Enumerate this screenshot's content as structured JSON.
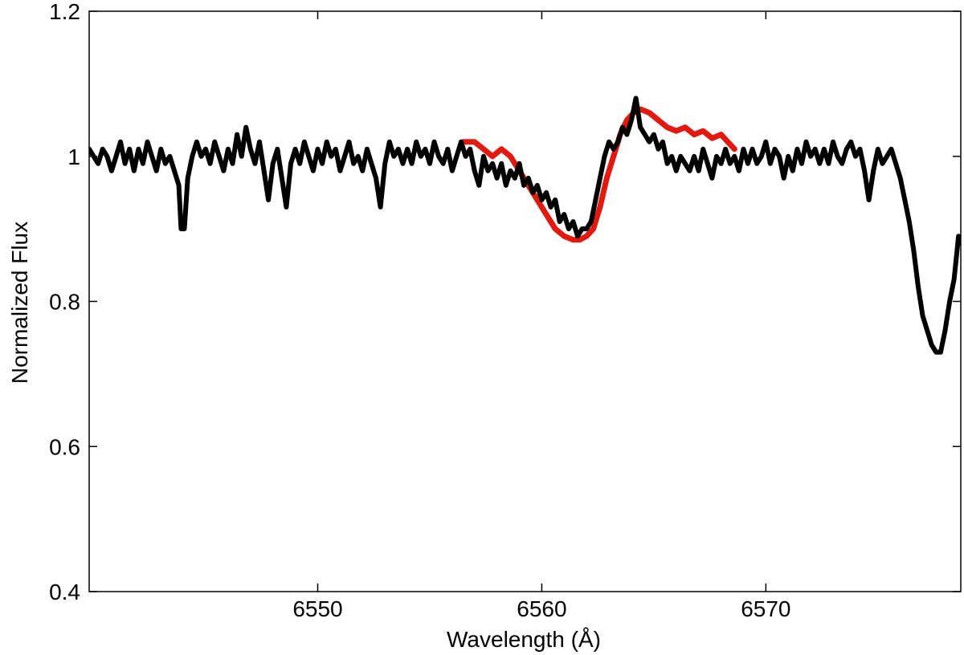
{
  "chart_data": {
    "type": "line",
    "title": "",
    "xlabel": "Wavelength (Å)",
    "ylabel": "Normalized Flux",
    "xlim": [
      6539.8,
      6578.7
    ],
    "ylim": [
      0.4,
      1.2
    ],
    "x_ticks": [
      6550,
      6560,
      6570
    ],
    "x_tick_labels": [
      "6550",
      "6560",
      "6570"
    ],
    "y_ticks": [
      0.4,
      0.6,
      0.8,
      1.0,
      1.2
    ],
    "y_tick_labels": [
      "0.4",
      "0.6",
      "0.8",
      "1",
      "1.2"
    ],
    "grid": false,
    "legend": "none",
    "series": [
      {
        "color": "#000000",
        "points": [
          [
            6539.8,
            1.01
          ],
          [
            6540.0,
            1.0
          ],
          [
            6540.2,
            0.99
          ],
          [
            6540.4,
            1.01
          ],
          [
            6540.6,
            1.0
          ],
          [
            6540.8,
            0.98
          ],
          [
            6541.0,
            1.0
          ],
          [
            6541.2,
            1.02
          ],
          [
            6541.4,
            0.99
          ],
          [
            6541.6,
            1.01
          ],
          [
            6541.8,
            0.98
          ],
          [
            6542.0,
            1.01
          ],
          [
            6542.2,
            0.99
          ],
          [
            6542.4,
            1.02
          ],
          [
            6542.6,
            1.0
          ],
          [
            6542.8,
            0.98
          ],
          [
            6543.0,
            1.01
          ],
          [
            6543.2,
            0.99
          ],
          [
            6543.4,
            1.0
          ],
          [
            6543.6,
            0.98
          ],
          [
            6543.8,
            0.96
          ],
          [
            6543.9,
            0.9
          ],
          [
            6544.05,
            0.9
          ],
          [
            6544.2,
            0.97
          ],
          [
            6544.4,
            1.0
          ],
          [
            6544.6,
            1.02
          ],
          [
            6544.8,
            1.0
          ],
          [
            6545.0,
            1.01
          ],
          [
            6545.2,
            0.99
          ],
          [
            6545.4,
            1.02
          ],
          [
            6545.6,
            1.0
          ],
          [
            6545.8,
            0.98
          ],
          [
            6546.0,
            1.01
          ],
          [
            6546.2,
            0.99
          ],
          [
            6546.4,
            1.03
          ],
          [
            6546.6,
            1.0
          ],
          [
            6546.8,
            1.04
          ],
          [
            6547.0,
            1.01
          ],
          [
            6547.2,
            0.99
          ],
          [
            6547.4,
            1.02
          ],
          [
            6547.6,
            0.98
          ],
          [
            6547.8,
            0.94
          ],
          [
            6548.0,
            0.99
          ],
          [
            6548.2,
            1.01
          ],
          [
            6548.4,
            0.97
          ],
          [
            6548.6,
            0.93
          ],
          [
            6548.8,
            0.99
          ],
          [
            6549.0,
            1.01
          ],
          [
            6549.2,
            0.99
          ],
          [
            6549.4,
            1.02
          ],
          [
            6549.6,
            1.0
          ],
          [
            6549.8,
            0.98
          ],
          [
            6550.0,
            1.01
          ],
          [
            6550.2,
            0.99
          ],
          [
            6550.4,
            1.02
          ],
          [
            6550.6,
            1.0
          ],
          [
            6550.8,
            1.01
          ],
          [
            6551.0,
            0.98
          ],
          [
            6551.2,
            1.0
          ],
          [
            6551.4,
            1.02
          ],
          [
            6551.6,
            0.99
          ],
          [
            6551.8,
            1.0
          ],
          [
            6552.0,
            0.98
          ],
          [
            6552.2,
            1.01
          ],
          [
            6552.4,
            0.99
          ],
          [
            6552.6,
            0.97
          ],
          [
            6552.8,
            0.93
          ],
          [
            6553.0,
            0.99
          ],
          [
            6553.2,
            1.02
          ],
          [
            6553.4,
            1.0
          ],
          [
            6553.6,
            1.01
          ],
          [
            6553.8,
            0.99
          ],
          [
            6554.0,
            1.01
          ],
          [
            6554.2,
            0.99
          ],
          [
            6554.4,
            1.02
          ],
          [
            6554.6,
            1.0
          ],
          [
            6554.8,
            1.01
          ],
          [
            6555.0,
            0.99
          ],
          [
            6555.2,
            1.02
          ],
          [
            6555.4,
            1.0
          ],
          [
            6555.6,
            0.99
          ],
          [
            6555.8,
            1.01
          ],
          [
            6556.0,
            0.98
          ],
          [
            6556.2,
            1.0
          ],
          [
            6556.4,
            1.02
          ],
          [
            6556.6,
            1.0
          ],
          [
            6556.8,
            1.01
          ],
          [
            6557.0,
            0.98
          ],
          [
            6557.2,
            0.96
          ],
          [
            6557.4,
            1.0
          ],
          [
            6557.6,
            0.98
          ],
          [
            6557.8,
            0.99
          ],
          [
            6558.0,
            0.97
          ],
          [
            6558.2,
            0.99
          ],
          [
            6558.4,
            0.96
          ],
          [
            6558.6,
            0.98
          ],
          [
            6558.8,
            0.97
          ],
          [
            6559.0,
            0.99
          ],
          [
            6559.2,
            0.96
          ],
          [
            6559.4,
            0.97
          ],
          [
            6559.6,
            0.95
          ],
          [
            6559.8,
            0.96
          ],
          [
            6560.0,
            0.94
          ],
          [
            6560.2,
            0.95
          ],
          [
            6560.4,
            0.93
          ],
          [
            6560.6,
            0.94
          ],
          [
            6560.8,
            0.91
          ],
          [
            6561.0,
            0.92
          ],
          [
            6561.2,
            0.9
          ],
          [
            6561.4,
            0.91
          ],
          [
            6561.6,
            0.89
          ],
          [
            6561.8,
            0.9
          ],
          [
            6562.0,
            0.9
          ],
          [
            6562.2,
            0.91
          ],
          [
            6562.4,
            0.94
          ],
          [
            6562.6,
            0.97
          ],
          [
            6562.8,
            1.0
          ],
          [
            6563.0,
            1.02
          ],
          [
            6563.2,
            1.01
          ],
          [
            6563.4,
            1.02
          ],
          [
            6563.6,
            1.04
          ],
          [
            6563.8,
            1.03
          ],
          [
            6564.0,
            1.05
          ],
          [
            6564.2,
            1.08
          ],
          [
            6564.4,
            1.04
          ],
          [
            6564.6,
            1.03
          ],
          [
            6564.8,
            1.02
          ],
          [
            6565.0,
            1.03
          ],
          [
            6565.2,
            1.01
          ],
          [
            6565.4,
            1.02
          ],
          [
            6565.6,
            0.99
          ],
          [
            6565.8,
            1.0
          ],
          [
            6566.0,
            0.98
          ],
          [
            6566.2,
            1.0
          ],
          [
            6566.4,
            0.99
          ],
          [
            6566.6,
            0.98
          ],
          [
            6566.8,
            1.0
          ],
          [
            6567.0,
            0.98
          ],
          [
            6567.2,
            1.01
          ],
          [
            6567.4,
            0.99
          ],
          [
            6567.6,
            0.97
          ],
          [
            6567.8,
            1.0
          ],
          [
            6568.0,
            0.99
          ],
          [
            6568.2,
            1.01
          ],
          [
            6568.4,
            0.99
          ],
          [
            6568.6,
            1.0
          ],
          [
            6568.8,
            0.98
          ],
          [
            6569.0,
            1.01
          ],
          [
            6569.2,
            0.99
          ],
          [
            6569.4,
            1.01
          ],
          [
            6569.6,
            0.99
          ],
          [
            6569.8,
            1.0
          ],
          [
            6570.0,
            1.02
          ],
          [
            6570.2,
            0.99
          ],
          [
            6570.4,
            1.01
          ],
          [
            6570.6,
            1.0
          ],
          [
            6570.8,
            0.97
          ],
          [
            6571.0,
            1.0
          ],
          [
            6571.2,
            0.98
          ],
          [
            6571.4,
            1.01
          ],
          [
            6571.6,
            0.99
          ],
          [
            6571.8,
            1.02
          ],
          [
            6572.0,
            1.0
          ],
          [
            6572.2,
            1.01
          ],
          [
            6572.4,
            0.99
          ],
          [
            6572.6,
            1.01
          ],
          [
            6572.8,
            0.99
          ],
          [
            6573.0,
            1.02
          ],
          [
            6573.2,
            1.0
          ],
          [
            6573.4,
            0.99
          ],
          [
            6573.6,
            1.01
          ],
          [
            6573.8,
            1.02
          ],
          [
            6574.0,
            1.0
          ],
          [
            6574.2,
            1.01
          ],
          [
            6574.4,
            0.98
          ],
          [
            6574.6,
            0.94
          ],
          [
            6574.8,
            0.98
          ],
          [
            6575.0,
            1.01
          ],
          [
            6575.2,
            0.99
          ],
          [
            6575.4,
            1.0
          ],
          [
            6575.6,
            1.01
          ],
          [
            6575.8,
            0.99
          ],
          [
            6576.0,
            0.97
          ],
          [
            6576.2,
            0.94
          ],
          [
            6576.4,
            0.91
          ],
          [
            6576.6,
            0.87
          ],
          [
            6576.8,
            0.82
          ],
          [
            6577.0,
            0.78
          ],
          [
            6577.2,
            0.76
          ],
          [
            6577.4,
            0.74
          ],
          [
            6577.6,
            0.73
          ],
          [
            6577.8,
            0.73
          ],
          [
            6578.0,
            0.76
          ],
          [
            6578.2,
            0.8
          ],
          [
            6578.4,
            0.83
          ],
          [
            6578.6,
            0.89
          ],
          [
            6578.7,
            0.88
          ]
        ]
      },
      {
        "color": "#e01a10",
        "points": [
          [
            6556.5,
            1.02
          ],
          [
            6557.0,
            1.02
          ],
          [
            6557.4,
            1.01
          ],
          [
            6557.8,
            1.0
          ],
          [
            6558.2,
            1.01
          ],
          [
            6558.6,
            1.0
          ],
          [
            6559.0,
            0.98
          ],
          [
            6559.4,
            0.96
          ],
          [
            6559.8,
            0.94
          ],
          [
            6560.2,
            0.92
          ],
          [
            6560.6,
            0.9
          ],
          [
            6561.0,
            0.89
          ],
          [
            6561.4,
            0.885
          ],
          [
            6561.7,
            0.885
          ],
          [
            6562.0,
            0.89
          ],
          [
            6562.3,
            0.9
          ],
          [
            6562.6,
            0.93
          ],
          [
            6562.9,
            0.97
          ],
          [
            6563.2,
            1.0
          ],
          [
            6563.5,
            1.03
          ],
          [
            6563.8,
            1.05
          ],
          [
            6564.1,
            1.06
          ],
          [
            6564.4,
            1.065
          ],
          [
            6564.8,
            1.06
          ],
          [
            6565.2,
            1.05
          ],
          [
            6565.6,
            1.04
          ],
          [
            6566.0,
            1.035
          ],
          [
            6566.4,
            1.04
          ],
          [
            6566.8,
            1.03
          ],
          [
            6567.2,
            1.035
          ],
          [
            6567.6,
            1.025
          ],
          [
            6568.0,
            1.03
          ],
          [
            6568.3,
            1.02
          ],
          [
            6568.6,
            1.01
          ]
        ]
      }
    ]
  }
}
